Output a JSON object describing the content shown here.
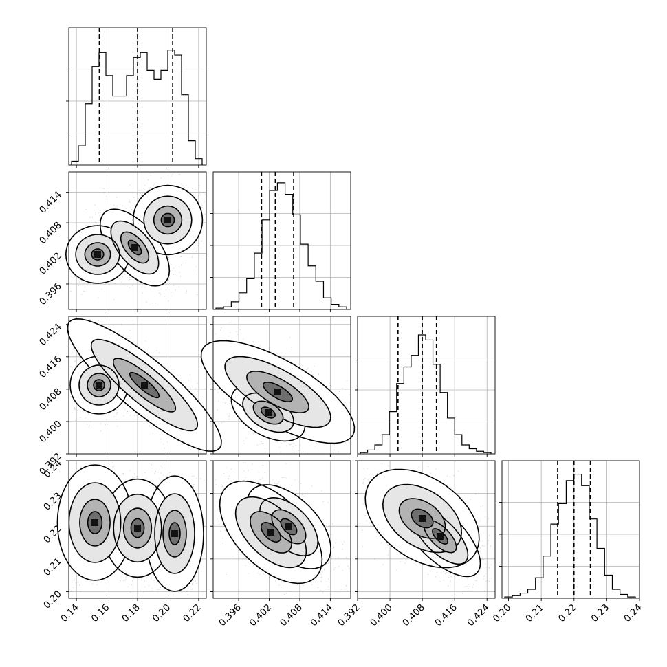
{
  "chart_data": {
    "type": "corner",
    "grid": true,
    "params": [
      {
        "range": [
          0.135,
          0.225
        ],
        "ticks": [
          "0.14",
          "0.16",
          "0.18",
          "0.20",
          "0.22"
        ],
        "tick_values": [
          0.14,
          0.16,
          0.18,
          0.2,
          0.22
        ],
        "quantiles": [
          0.155,
          0.18,
          0.203
        ]
      },
      {
        "range": [
          0.391,
          0.418
        ],
        "ticks": [
          "0.396",
          "0.402",
          "0.408",
          "0.414"
        ],
        "tick_values": [
          0.396,
          0.402,
          0.408,
          0.414
        ],
        "quantiles": [
          0.4005,
          0.4032,
          0.4068
        ]
      },
      {
        "range": [
          0.392,
          0.426
        ],
        "ticks": [
          "0.392",
          "0.400",
          "0.408",
          "0.416",
          "0.424"
        ],
        "tick_values": [
          0.392,
          0.4,
          0.408,
          0.416,
          0.424
        ],
        "quantiles": [
          0.402,
          0.408,
          0.4115
        ]
      },
      {
        "range": [
          0.198,
          0.24
        ],
        "ticks": [
          "0.20",
          "0.21",
          "0.22",
          "0.23",
          "0.24"
        ],
        "tick_values": [
          0.2,
          0.21,
          0.22,
          0.23,
          0.24
        ],
        "quantiles": [
          0.215,
          0.22,
          0.225
        ]
      }
    ],
    "hist_heights": [
      [
        0.03,
        0.15,
        0.48,
        0.77,
        0.88,
        0.7,
        0.54,
        0.54,
        0.7,
        0.84,
        0.88,
        0.74,
        0.67,
        0.74,
        0.9,
        0.86,
        0.55,
        0.19,
        0.05
      ],
      [
        0.01,
        0.02,
        0.06,
        0.13,
        0.24,
        0.44,
        0.7,
        0.93,
        0.99,
        0.9,
        0.74,
        0.51,
        0.34,
        0.22,
        0.09,
        0.04,
        0.02
      ],
      [
        0.01,
        0.03,
        0.07,
        0.15,
        0.33,
        0.55,
        0.68,
        0.77,
        0.93,
        0.89,
        0.7,
        0.48,
        0.28,
        0.15,
        0.07,
        0.04,
        0.02,
        0.01
      ],
      [
        0.01,
        0.02,
        0.04,
        0.07,
        0.16,
        0.33,
        0.58,
        0.74,
        0.92,
        0.97,
        0.88,
        0.62,
        0.39,
        0.18,
        0.07,
        0.03,
        0.01
      ]
    ]
  }
}
